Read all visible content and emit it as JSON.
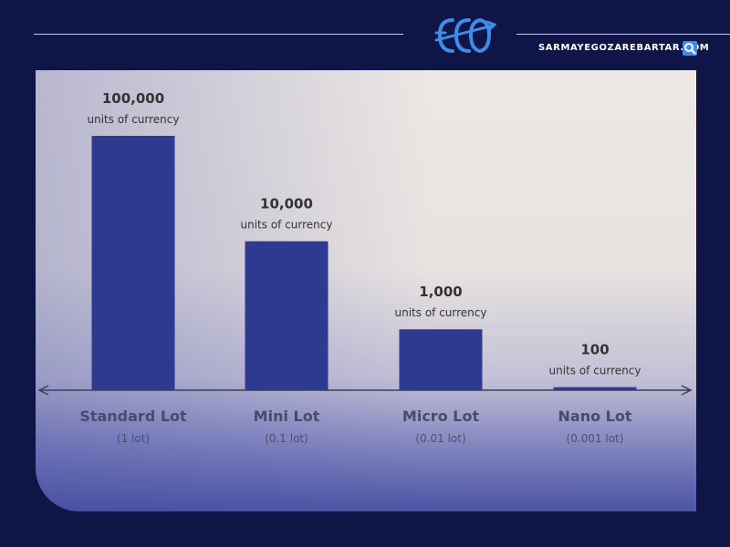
{
  "header": {
    "site": "SARMAYEGOZAREBARTAR.COM",
    "logo_icon": "eco-logo-icon",
    "search_icon": "search-icon"
  },
  "colors": {
    "background": "#0f1547",
    "bar": "#2e3a8f",
    "logo": "#3d8ce6",
    "axis": "#3a3f5c"
  },
  "chart_data": {
    "type": "bar",
    "title": "",
    "xlabel": "",
    "ylabel": "",
    "categories": [
      "Standard Lot",
      "Mini Lot",
      "Micro Lot",
      "Nano Lot"
    ],
    "subcategories": [
      "(1 lot)",
      "(0.1 lot)",
      "(0.01 lot)",
      "(0.001 lot)"
    ],
    "values": [
      100000,
      10000,
      1000,
      100
    ],
    "value_labels": [
      "100,000",
      "10,000",
      "1,000",
      "100"
    ],
    "unit_label": "units of currency",
    "scale": "log",
    "grid": false,
    "legend": "none"
  }
}
